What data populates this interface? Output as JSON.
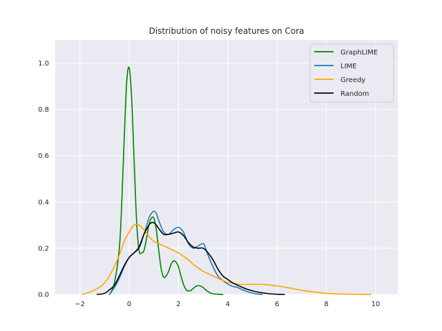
{
  "chart_data": {
    "type": "line",
    "title": "Distribution of noisy features on Cora",
    "xlabel": "",
    "ylabel": "",
    "xlim": [
      -3.0,
      10.9
    ],
    "ylim": [
      0.0,
      1.1
    ],
    "xticks": [
      -2,
      0,
      2,
      4,
      6,
      8,
      10
    ],
    "xtick_labels": [
      "−2",
      "0",
      "2",
      "4",
      "6",
      "8",
      "10"
    ],
    "yticks": [
      0.0,
      0.2,
      0.4,
      0.6,
      0.8,
      1.0
    ],
    "ytick_labels": [
      "0.0",
      "0.2",
      "0.4",
      "0.6",
      "0.8",
      "1.0"
    ],
    "grid": true,
    "legend_position": "top-right",
    "series": [
      {
        "name": "GraphLIME",
        "color": "#008000",
        "x": [
          -0.8,
          -0.6,
          -0.4,
          -0.3,
          -0.2,
          -0.1,
          0.0,
          0.1,
          0.2,
          0.3,
          0.4,
          0.5,
          0.6,
          0.7,
          0.8,
          0.9,
          1.0,
          1.1,
          1.2,
          1.3,
          1.4,
          1.5,
          1.6,
          1.7,
          1.8,
          1.9,
          2.0,
          2.1,
          2.2,
          2.3,
          2.4,
          2.5,
          2.6,
          2.7,
          2.8,
          2.9,
          3.0,
          3.1,
          3.2,
          3.3,
          3.4,
          3.6,
          3.8
        ],
        "y": [
          0.0,
          0.05,
          0.2,
          0.4,
          0.68,
          0.92,
          0.98,
          0.85,
          0.58,
          0.32,
          0.19,
          0.18,
          0.19,
          0.24,
          0.3,
          0.33,
          0.33,
          0.28,
          0.19,
          0.11,
          0.075,
          0.08,
          0.1,
          0.13,
          0.145,
          0.14,
          0.12,
          0.08,
          0.045,
          0.022,
          0.015,
          0.017,
          0.026,
          0.035,
          0.038,
          0.036,
          0.03,
          0.02,
          0.012,
          0.006,
          0.003,
          0.001,
          0.0
        ]
      },
      {
        "name": "LIME",
        "color": "#1f77b4",
        "x": [
          -0.8,
          -0.6,
          -0.4,
          -0.2,
          0.0,
          0.2,
          0.4,
          0.6,
          0.8,
          0.9,
          1.0,
          1.1,
          1.2,
          1.4,
          1.6,
          1.8,
          2.0,
          2.2,
          2.4,
          2.6,
          2.8,
          3.0,
          3.1,
          3.2,
          3.4,
          3.6,
          3.8,
          4.0,
          4.2,
          4.4,
          4.6,
          4.8,
          5.0,
          5.2,
          5.4
        ],
        "y": [
          0.0,
          0.03,
          0.07,
          0.12,
          0.16,
          0.18,
          0.2,
          0.26,
          0.33,
          0.35,
          0.36,
          0.35,
          0.32,
          0.27,
          0.26,
          0.28,
          0.29,
          0.27,
          0.22,
          0.2,
          0.21,
          0.22,
          0.2,
          0.17,
          0.12,
          0.08,
          0.06,
          0.045,
          0.035,
          0.03,
          0.02,
          0.012,
          0.006,
          0.002,
          0.0
        ]
      },
      {
        "name": "Greedy",
        "color": "#ffa500",
        "x": [
          -1.9,
          -1.6,
          -1.3,
          -1.0,
          -0.7,
          -0.4,
          -0.2,
          0.0,
          0.2,
          0.4,
          0.6,
          0.8,
          1.0,
          1.2,
          1.4,
          1.6,
          1.8,
          2.0,
          2.2,
          2.4,
          2.6,
          2.8,
          3.0,
          3.2,
          3.4,
          3.6,
          3.8,
          4.0,
          4.3,
          4.6,
          5.0,
          5.3,
          5.6,
          6.0,
          6.4,
          6.8,
          7.2,
          7.6,
          8.0,
          8.5,
          9.0,
          9.5,
          9.8
        ],
        "y": [
          0.0,
          0.01,
          0.025,
          0.05,
          0.1,
          0.17,
          0.23,
          0.27,
          0.3,
          0.3,
          0.28,
          0.25,
          0.23,
          0.22,
          0.21,
          0.2,
          0.19,
          0.18,
          0.165,
          0.15,
          0.13,
          0.115,
          0.1,
          0.09,
          0.08,
          0.07,
          0.06,
          0.053,
          0.047,
          0.043,
          0.044,
          0.044,
          0.042,
          0.037,
          0.03,
          0.022,
          0.015,
          0.009,
          0.005,
          0.002,
          0.001,
          0.0,
          0.0
        ]
      },
      {
        "name": "Random",
        "color": "#000000",
        "x": [
          -1.3,
          -1.0,
          -0.8,
          -0.6,
          -0.4,
          -0.2,
          0.0,
          0.2,
          0.4,
          0.6,
          0.8,
          0.9,
          1.0,
          1.1,
          1.2,
          1.4,
          1.6,
          1.8,
          2.0,
          2.2,
          2.4,
          2.6,
          2.8,
          3.0,
          3.2,
          3.4,
          3.6,
          3.8,
          4.0,
          4.2,
          4.5,
          4.8,
          5.1,
          5.4,
          5.7,
          6.0,
          6.3
        ],
        "y": [
          0.0,
          0.005,
          0.02,
          0.04,
          0.08,
          0.125,
          0.16,
          0.18,
          0.205,
          0.26,
          0.3,
          0.31,
          0.31,
          0.3,
          0.285,
          0.26,
          0.26,
          0.265,
          0.27,
          0.255,
          0.225,
          0.205,
          0.2,
          0.2,
          0.18,
          0.15,
          0.11,
          0.08,
          0.065,
          0.05,
          0.035,
          0.022,
          0.013,
          0.007,
          0.003,
          0.001,
          0.0
        ]
      }
    ]
  }
}
